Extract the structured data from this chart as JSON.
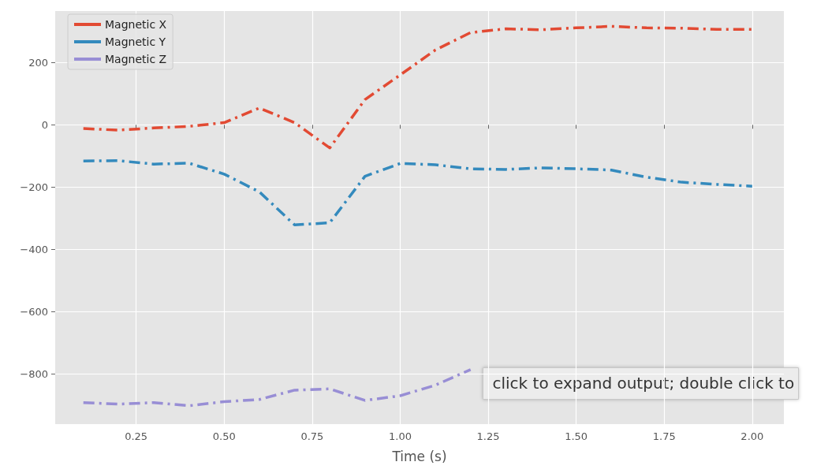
{
  "chart_data": {
    "type": "line",
    "xlabel": "Time (s)",
    "x": [
      0.1,
      0.2,
      0.3,
      0.4,
      0.5,
      0.6,
      0.7,
      0.8,
      0.9,
      1.0,
      1.1,
      1.2,
      1.3,
      1.4,
      1.5,
      1.6,
      1.7,
      1.8,
      1.9,
      2.0
    ],
    "series": [
      {
        "name": "Magnetic X",
        "color": "#e24a33",
        "values": [
          -12,
          -17,
          -10,
          -5,
          7,
          54,
          7,
          -74,
          81,
          160,
          240,
          296,
          308,
          305,
          311,
          316,
          311,
          310,
          306,
          306
        ]
      },
      {
        "name": "Magnetic Y",
        "color": "#348abd",
        "values": [
          -116,
          -115,
          -126,
          -123,
          -158,
          -215,
          -321,
          -314,
          -165,
          -124,
          -128,
          -141,
          -143,
          -138,
          -141,
          -145,
          -168,
          -184,
          -191,
          -197
        ]
      },
      {
        "name": "Magnetic Z",
        "color": "#988ed5",
        "values": [
          -891,
          -896,
          -891,
          -901,
          -888,
          -881,
          -851,
          -847,
          -884,
          -869,
          -835,
          -785,
          null,
          null,
          null,
          null,
          null,
          null,
          null,
          null
        ]
      }
    ],
    "xlim": [
      0.02,
      2.09
    ],
    "xticks": [
      {
        "value": 0.25,
        "label": "0.25"
      },
      {
        "value": 0.5,
        "label": "0.50"
      },
      {
        "value": 0.75,
        "label": "0.75"
      },
      {
        "value": 1.0,
        "label": "1.00"
      },
      {
        "value": 1.25,
        "label": "1.25"
      },
      {
        "value": 1.5,
        "label": "1.50"
      },
      {
        "value": 1.75,
        "label": "1.75"
      },
      {
        "value": 2.0,
        "label": "2.00"
      }
    ],
    "ylim": [
      -960,
      365
    ],
    "yticks": [
      {
        "value": -800,
        "label": "−800"
      },
      {
        "value": -600,
        "label": "−600"
      },
      {
        "value": -400,
        "label": "−400"
      },
      {
        "value": -200,
        "label": "−200"
      },
      {
        "value": 0,
        "label": "0"
      },
      {
        "value": 200,
        "label": "200"
      }
    ],
    "grid": true,
    "legend": "top left",
    "marker": "none",
    "line_style": "dashdot",
    "annotations": [
      "click to expand output; double click to"
    ]
  }
}
